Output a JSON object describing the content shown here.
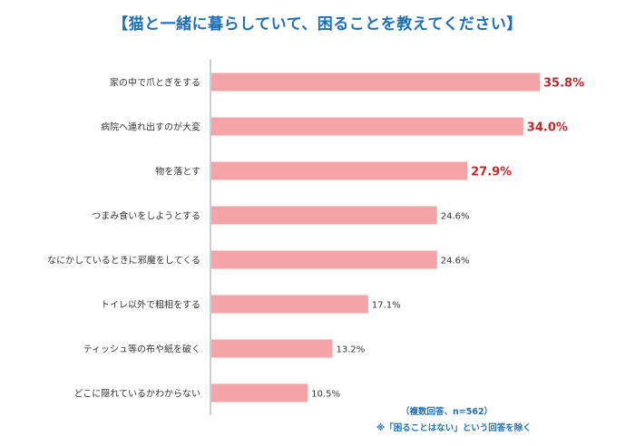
{
  "title": "【猫と一緒に暮らしていて、困ることを教えてください】",
  "chart_data": {
    "type": "bar",
    "orientation": "horizontal",
    "categories": [
      "家の中で爪とぎをする",
      "病院へ連れ出すのが大変",
      "物を落とす",
      "つまみ食いをしようとする",
      "なにかしているときに邪魔をしてくる",
      "トイレ以外で粗相をする",
      "ティッシュ等の布や紙を破く",
      "どこに隠れているかわからない"
    ],
    "values": [
      35.8,
      34.0,
      27.9,
      24.6,
      24.6,
      17.1,
      13.2,
      10.5
    ],
    "value_labels": [
      "35.8%",
      "34.0%",
      "27.9%",
      "24.6%",
      "24.6%",
      "17.1%",
      "13.2%",
      "10.5%"
    ],
    "highlighted": [
      true,
      true,
      true,
      false,
      false,
      false,
      false,
      false
    ],
    "xlim": [
      0,
      40
    ],
    "grid": false,
    "legend": "none"
  },
  "colors": {
    "bar": "#f4a3a6",
    "highlight_text": "#c0282d",
    "normal_text": "#333333",
    "title": "#1f6fb5",
    "axis": "#9a9a9a"
  },
  "notes": {
    "sample": "（複数回答、n=562）",
    "exclusion": "※「困ることはない」という回答を除く"
  }
}
